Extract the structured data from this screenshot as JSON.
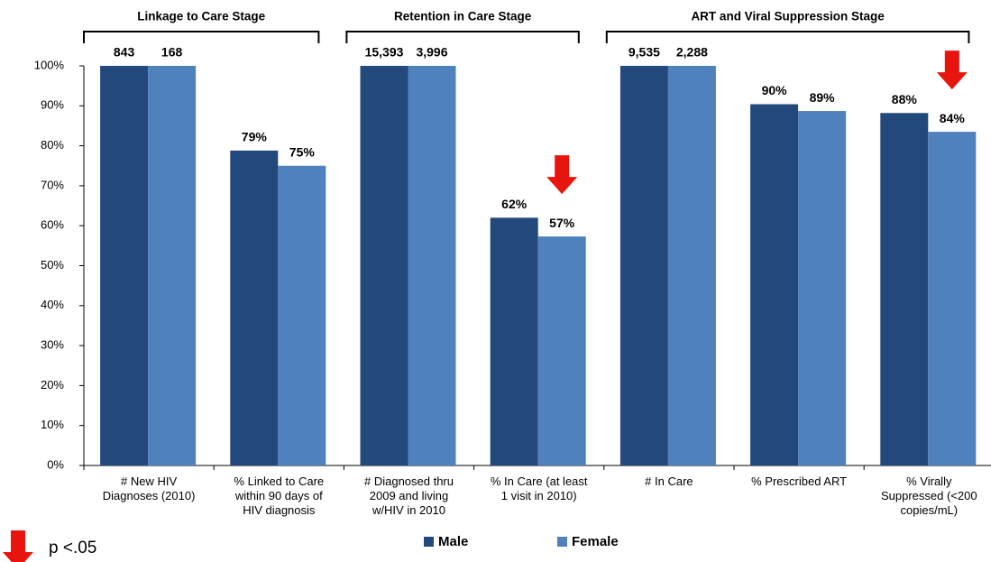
{
  "chart_data": {
    "type": "bar",
    "groups": [
      {
        "label": "Linkage to Care Stage",
        "count": 2
      },
      {
        "label": "Retention in Care Stage",
        "count": 2
      },
      {
        "label": "ART and Viral Suppression Stage",
        "count": 3
      }
    ],
    "categories": [
      [
        "# New HIV",
        "Diagnoses (2010)"
      ],
      [
        "% Linked to Care",
        "within 90 days of",
        "HIV diagnosis"
      ],
      [
        "# Diagnosed thru",
        "2009 and living",
        "w/HIV in 2010"
      ],
      [
        "% In Care (at least",
        "1 visit in 2010)"
      ],
      [
        "# In Care"
      ],
      [
        "% Prescribed ART"
      ],
      [
        "% Virally",
        "Suppressed (<200",
        "copies/mL)"
      ]
    ],
    "series": [
      {
        "name": "Male",
        "color": "#23487b",
        "values": [
          100,
          78.8,
          100,
          62,
          100,
          90.4,
          88.2
        ],
        "value_labels": [
          null,
          "79%",
          null,
          "62%",
          null,
          "90%",
          "88%"
        ],
        "counts": [
          843,
          null,
          {
            "value": 15393,
            "label": "15,393"
          },
          null,
          {
            "value": 9535,
            "label": "9,535"
          },
          null,
          null
        ],
        "significant": [
          false,
          false,
          false,
          false,
          false,
          false,
          false
        ]
      },
      {
        "name": "Female",
        "color": "#4f81bd",
        "values": [
          100,
          75,
          100,
          57.3,
          100,
          88.7,
          83.5
        ],
        "value_labels": [
          null,
          "75%",
          null,
          "57%",
          null,
          "89%",
          "84%"
        ],
        "counts": [
          168,
          null,
          {
            "value": 3996,
            "label": "3,996"
          },
          null,
          {
            "value": 2288,
            "label": "2,288"
          },
          null,
          null
        ],
        "significant": [
          false,
          false,
          false,
          true,
          false,
          false,
          true
        ]
      }
    ],
    "significance_label": "p <.05",
    "ylim": [
      0,
      100
    ],
    "yticks": [
      {
        "value": 0,
        "label": "0%"
      },
      {
        "value": 10,
        "label": "10%"
      },
      {
        "value": 20,
        "label": "20%"
      },
      {
        "value": 30,
        "label": "30%"
      },
      {
        "value": 40,
        "label": "40%"
      },
      {
        "value": 50,
        "label": "50%"
      },
      {
        "value": 60,
        "label": "60%"
      },
      {
        "value": 70,
        "label": "70%"
      },
      {
        "value": 80,
        "label": "80%"
      },
      {
        "value": 90,
        "label": "90%"
      },
      {
        "value": 100,
        "label": "100%"
      }
    ],
    "grid": false,
    "legend": "bottom"
  }
}
